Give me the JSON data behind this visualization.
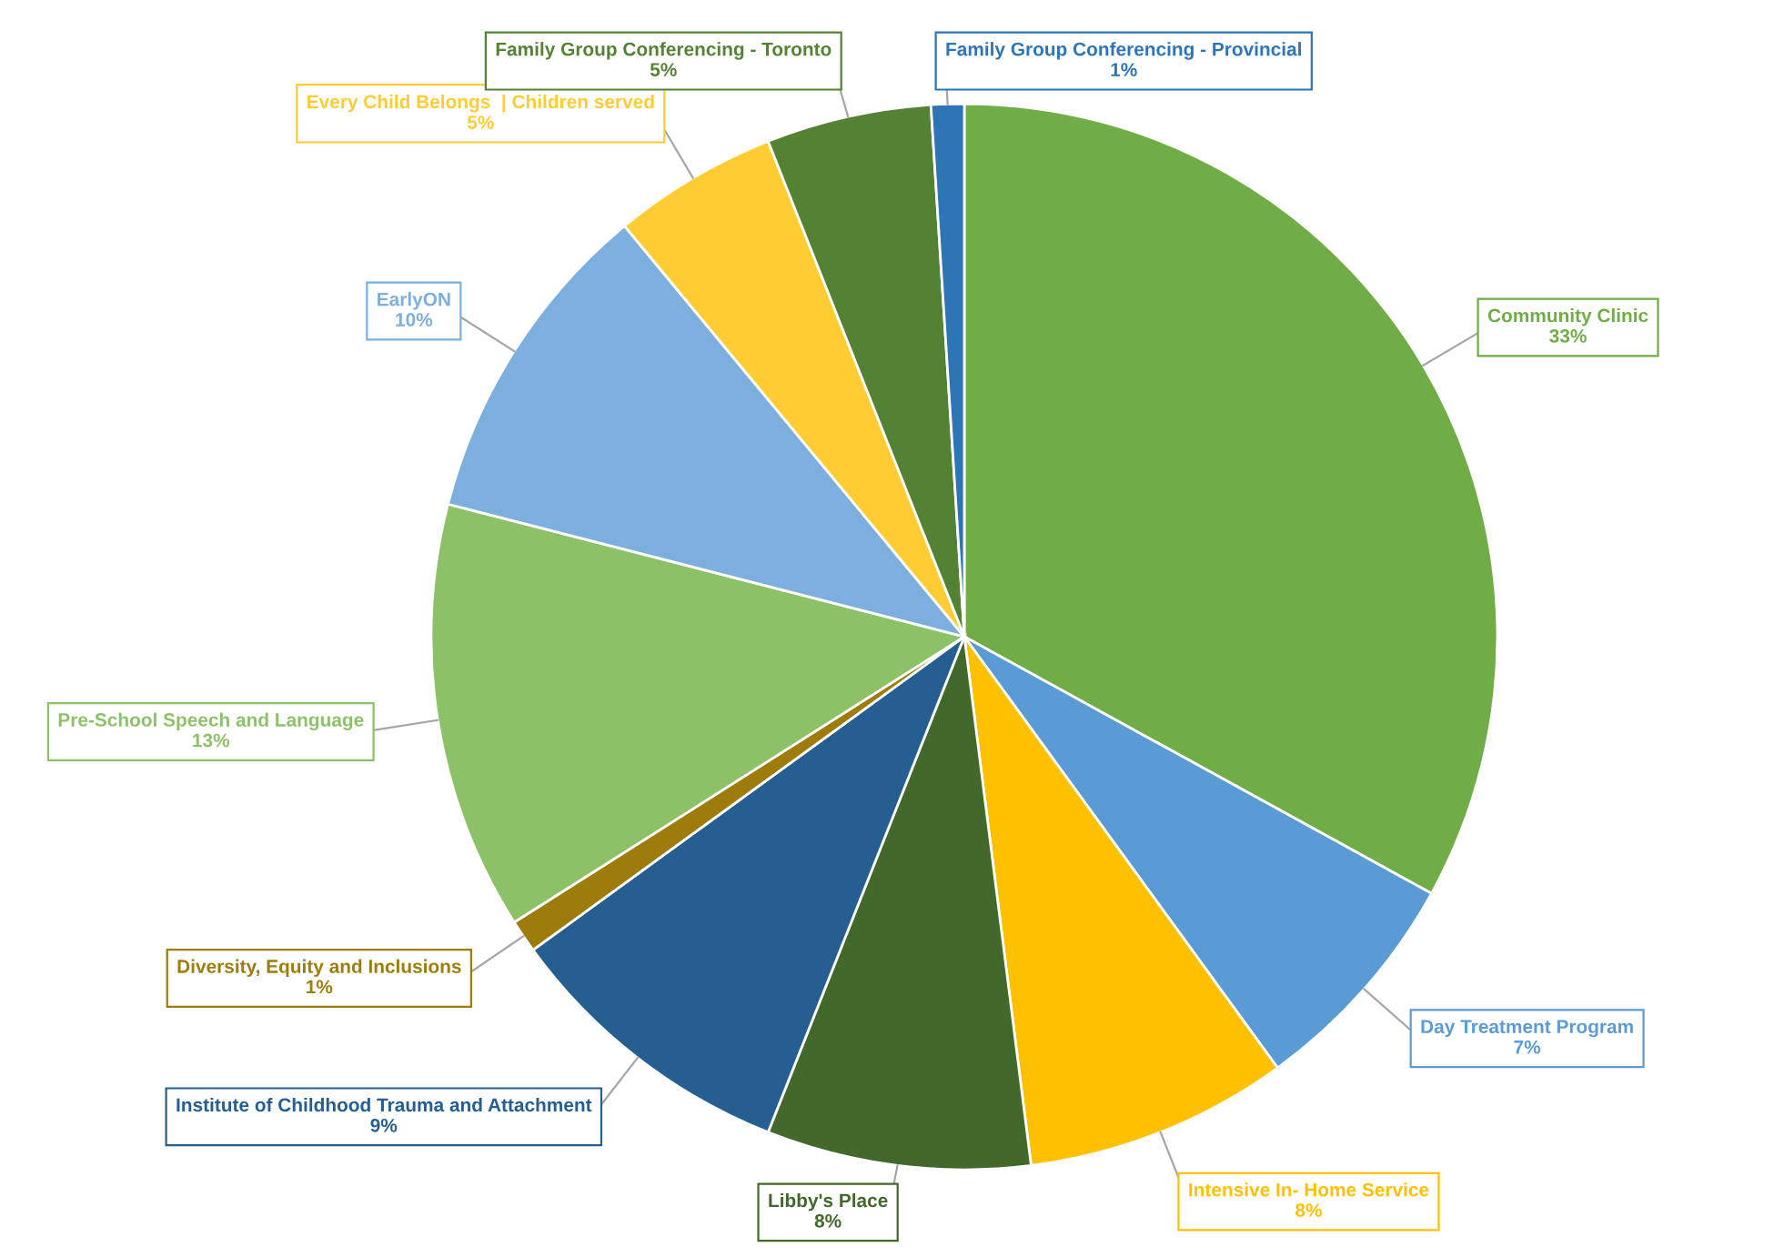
{
  "chart_data": {
    "type": "pie",
    "categories": [
      "Community Clinic",
      "Day Treatment Program",
      "Intensive In- Home Service",
      "Libby's Place",
      "Institute of Childhood Trauma and Attachment",
      "Diversity, Equity and Inclusions",
      "Pre-School Speech and Language",
      "EarlyON",
      "Every Child Belongs  | Children served",
      "Family Group Conferencing - Toronto",
      "Family Group Conferencing - Provincial"
    ],
    "values": [
      33,
      7,
      8,
      8,
      9,
      1,
      13,
      10,
      5,
      5,
      1
    ],
    "colors": [
      "#70ad47",
      "#5b9bd5",
      "#ffc000",
      "#43682b",
      "#255e91",
      "#9e7c0c",
      "#8cc168",
      "#7cafdd",
      "#ffcd33",
      "#548235",
      "#2e75b6"
    ],
    "value_labels": [
      "33%",
      "7%",
      "8%",
      "8%",
      "9%",
      "1%",
      "13%",
      "10%",
      "5%",
      "5%",
      "1%"
    ]
  }
}
